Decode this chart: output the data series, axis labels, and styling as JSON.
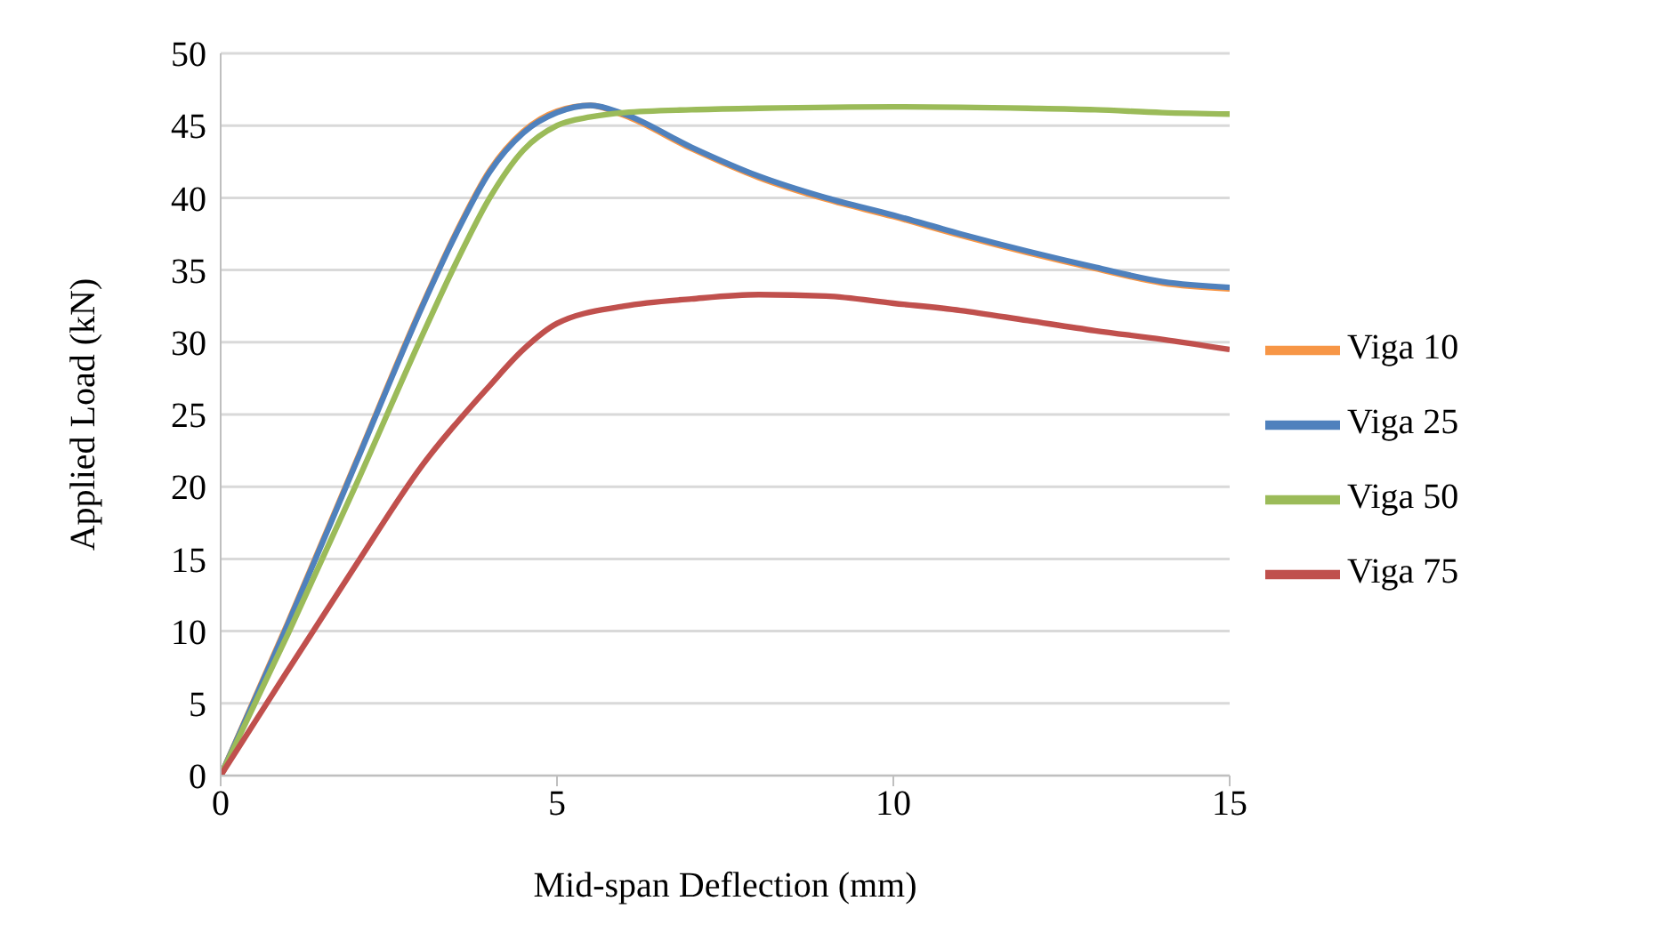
{
  "chart_data": {
    "type": "line",
    "xlabel": "Mid-span Deflection (mm)",
    "ylabel": "Applied Load (kN)",
    "xlim": [
      0,
      15
    ],
    "xticks": [
      0,
      5,
      10,
      15
    ],
    "ylim": [
      0,
      50
    ],
    "yticks": [
      0,
      5,
      10,
      15,
      20,
      25,
      30,
      35,
      40,
      45,
      50
    ],
    "grid": "y",
    "legend": "right",
    "marker": "none",
    "line_style": "solid",
    "series": [
      {
        "name": "Viga 10",
        "color": "#f79646",
        "x": [
          0,
          1,
          2,
          3,
          3.5,
          4,
          4.5,
          5,
          5.5,
          6,
          7,
          8,
          9,
          10,
          11,
          12,
          13,
          14,
          15
        ],
        "values": [
          0,
          10.6,
          21.6,
          32.6,
          37.6,
          41.9,
          44.6,
          46,
          46.4,
          45.7,
          43.4,
          41.4,
          39.9,
          38.7,
          37.4,
          36.2,
          35.1,
          34.1,
          33.7
        ]
      },
      {
        "name": "Viga 25",
        "color": "#4f81bd",
        "x": [
          0,
          1,
          2,
          3,
          3.5,
          4,
          4.5,
          5,
          5.5,
          6,
          7,
          8,
          9,
          10,
          11,
          12,
          13,
          14,
          15
        ],
        "values": [
          0,
          10.5,
          21.5,
          32.5,
          37.5,
          41.8,
          44.5,
          45.9,
          46.4,
          45.8,
          43.5,
          41.5,
          40,
          38.8,
          37.5,
          36.3,
          35.2,
          34.2,
          33.8
        ]
      },
      {
        "name": "Viga 50",
        "color": "#9bbb59",
        "x": [
          0,
          1,
          2,
          3,
          3.5,
          4,
          4.5,
          5,
          5.5,
          6,
          7,
          8,
          10,
          12,
          13,
          14,
          15
        ],
        "values": [
          0,
          9.8,
          20,
          30.5,
          35.5,
          40,
          43.3,
          45,
          45.6,
          45.9,
          46.1,
          46.2,
          46.3,
          46.2,
          46.1,
          45.9,
          45.8
        ]
      },
      {
        "name": "Viga 75",
        "color": "#c0504d",
        "x": [
          0,
          1,
          2,
          3,
          4,
          4.5,
          5,
          6,
          7,
          8,
          9,
          10,
          11,
          12,
          13,
          14,
          15
        ],
        "values": [
          0,
          7.3,
          14.5,
          21.5,
          27,
          29.5,
          31.3,
          32.5,
          33,
          33.3,
          33.2,
          32.7,
          32.2,
          31.5,
          30.8,
          30.2,
          29.5
        ]
      }
    ]
  }
}
